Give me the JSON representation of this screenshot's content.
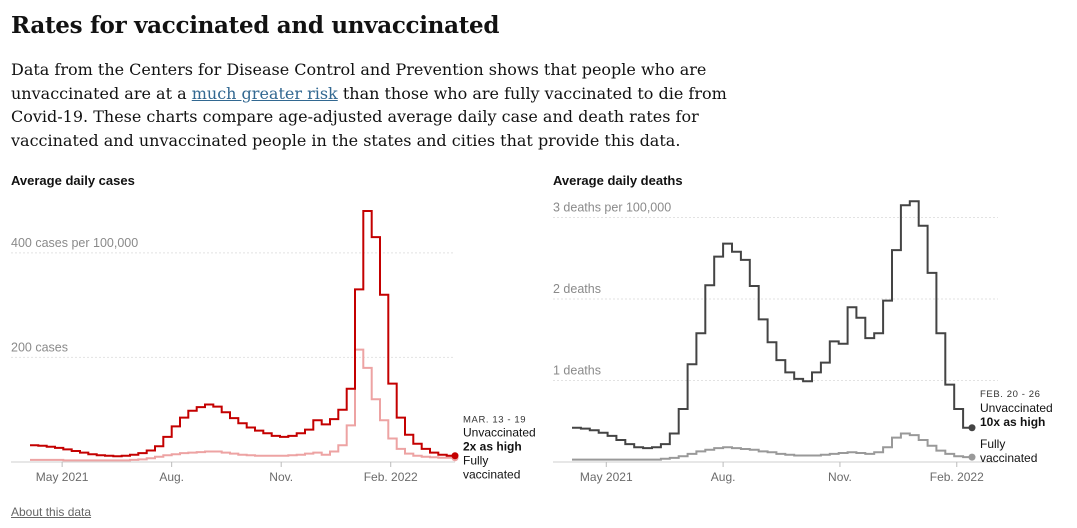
{
  "header": {
    "title": "Rates for vaccinated and unvaccinated",
    "desc_before": "Data from the Centers for Disease Control and Prevention shows that people who are unvaccinated are at a ",
    "desc_link": "much greater risk",
    "desc_after": " than those who are fully vaccinated to die from Covid-19. These charts compare age-adjusted average daily case and death rates for vaccinated and unvaccinated people in the states and cities that provide this data."
  },
  "footer": {
    "about_label": "About this data"
  },
  "chart_data": [
    {
      "type": "line",
      "title": "Average daily cases",
      "x_start": "2021-04-04",
      "x_step_days": 7,
      "x_tick_labels": [
        "May 2021",
        "Aug.",
        "Nov.",
        "Feb. 2022"
      ],
      "x_tick_dates": [
        "2021-05-01",
        "2021-08-01",
        "2021-11-01",
        "2022-02-01"
      ],
      "y_ticks": [
        {
          "value": 200,
          "label": "200 cases"
        },
        {
          "value": 400,
          "label": "400 cases per 100,000"
        }
      ],
      "ylim": [
        0,
        480
      ],
      "grid": true,
      "colors": {
        "unvaccinated": "#c40000",
        "vaccinated": "#eda3a3"
      },
      "series": [
        {
          "name": "Unvaccinated",
          "values": [
            32,
            31,
            29,
            27,
            24,
            21,
            18,
            15,
            13,
            12,
            11,
            12,
            14,
            17,
            22,
            30,
            48,
            68,
            85,
            98,
            105,
            110,
            106,
            95,
            84,
            74,
            66,
            60,
            55,
            50,
            48,
            50,
            55,
            62,
            80,
            72,
            82,
            100,
            140,
            330,
            480,
            430,
            320,
            150,
            85,
            52,
            35,
            25,
            18,
            14,
            12
          ]
        },
        {
          "name": "Fully vaccinated",
          "values": [
            4,
            4,
            4,
            4,
            3,
            3,
            3,
            3,
            3,
            3,
            3,
            3,
            4,
            5,
            7,
            10,
            13,
            15,
            17,
            18,
            19,
            20,
            20,
            18,
            16,
            14,
            13,
            12,
            12,
            12,
            12,
            13,
            14,
            16,
            18,
            14,
            20,
            32,
            70,
            215,
            180,
            120,
            80,
            45,
            25,
            16,
            12,
            10,
            9,
            8,
            8
          ]
        }
      ],
      "annotation": {
        "date": "MAR. 13 - 19",
        "unvaccinated_label": "Unvaccinated",
        "ratio": "2x as high",
        "vaccinated_label": "Fully vaccinated"
      }
    },
    {
      "type": "line",
      "title": "Average daily deaths",
      "x_start": "2021-04-04",
      "x_step_days": 7,
      "x_tick_labels": [
        "May 2021",
        "Aug.",
        "Nov.",
        "Feb. 2022"
      ],
      "x_tick_dates": [
        "2021-05-01",
        "2021-08-01",
        "2021-11-01",
        "2022-02-01"
      ],
      "y_ticks": [
        {
          "value": 1,
          "label": "1 deaths"
        },
        {
          "value": 2,
          "label": "2 deaths"
        },
        {
          "value": 3,
          "label": "3 deaths per 100,000"
        }
      ],
      "ylim": [
        0,
        3.35
      ],
      "grid": true,
      "colors": {
        "unvaccinated": "#444444",
        "vaccinated": "#999999"
      },
      "series": [
        {
          "name": "Unvaccinated",
          "values": [
            0.42,
            0.41,
            0.39,
            0.36,
            0.32,
            0.27,
            0.22,
            0.18,
            0.17,
            0.18,
            0.22,
            0.35,
            0.65,
            1.2,
            1.58,
            2.17,
            2.52,
            2.68,
            2.58,
            2.48,
            2.16,
            1.75,
            1.47,
            1.25,
            1.1,
            1.02,
            0.99,
            1.1,
            1.22,
            1.48,
            1.45,
            1.9,
            1.77,
            1.52,
            1.58,
            1.98,
            2.6,
            3.15,
            3.2,
            2.9,
            2.32,
            1.58,
            0.95,
            0.65,
            0.42
          ]
        },
        {
          "name": "Fully vaccinated",
          "values": [
            0.03,
            0.03,
            0.03,
            0.03,
            0.03,
            0.03,
            0.03,
            0.03,
            0.03,
            0.03,
            0.04,
            0.05,
            0.07,
            0.1,
            0.13,
            0.15,
            0.17,
            0.18,
            0.17,
            0.16,
            0.15,
            0.13,
            0.12,
            0.1,
            0.09,
            0.08,
            0.08,
            0.08,
            0.09,
            0.1,
            0.11,
            0.12,
            0.11,
            0.1,
            0.12,
            0.18,
            0.3,
            0.35,
            0.33,
            0.27,
            0.2,
            0.14,
            0.1,
            0.07,
            0.06
          ]
        }
      ],
      "annotation": {
        "date": "FEB. 20 - 26",
        "unvaccinated_label": "Unvaccinated",
        "ratio": "10x as high",
        "vaccinated_label": "Fully vaccinated"
      }
    }
  ]
}
